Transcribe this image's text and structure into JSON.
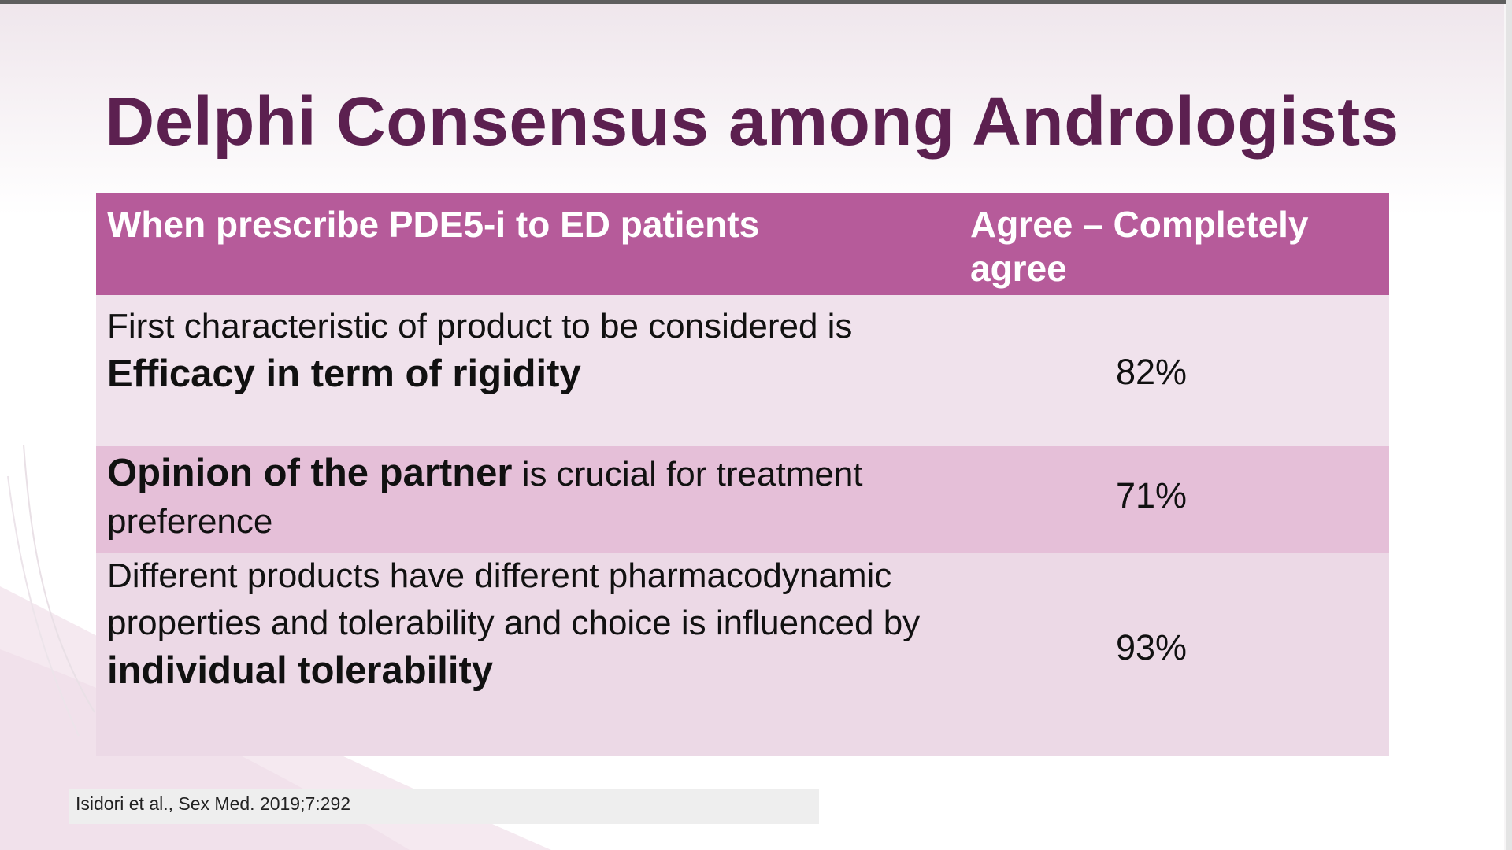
{
  "slide": {
    "title": "Delphi Consensus among Andrologists",
    "table": {
      "header": {
        "left": "When prescribe PDE5-i to ED patients",
        "right": "Agree – Completely agree"
      },
      "rows": [
        {
          "parts": [
            {
              "text": "First characteristic of product to be considered is ",
              "bold": false
            },
            {
              "text": "Efficacy in term of rigidity",
              "bold": true
            }
          ],
          "value": "82%"
        },
        {
          "parts": [
            {
              "text": "Opinion of the partner",
              "bold": true
            },
            {
              "text": " is crucial for treatment preference",
              "bold": false
            }
          ],
          "value": "71%"
        },
        {
          "parts": [
            {
              "text": "Different products have different pharmacodynamic properties and tolerability and choice is influenced by ",
              "bold": false
            },
            {
              "text": "individual tolerability",
              "bold": true
            }
          ],
          "value": "93%"
        }
      ]
    },
    "citation": "Isidori et al., Sex Med. 2019;7:292"
  },
  "colors": {
    "title": "#5c2050",
    "header_bg": "#b65b9a",
    "row1_bg": "#f0e2ec",
    "row2_bg": "#e5bfd8",
    "row3_bg": "#ecd9e6"
  }
}
